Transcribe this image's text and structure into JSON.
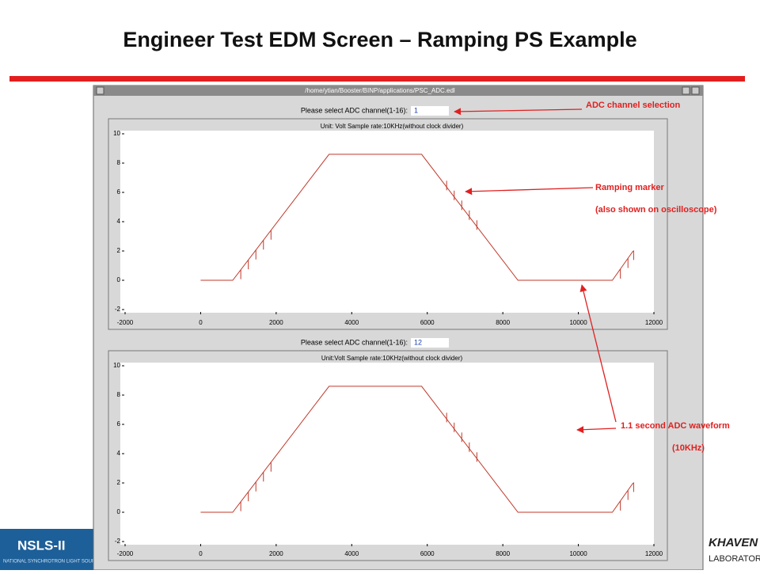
{
  "title": "Engineer Test EDM Screen – Ramping PS Example",
  "window": {
    "title": "/home/ytian/Booster/BINP/applications/PSC_ADC.edl"
  },
  "panels": [
    {
      "prompt": "Please select ADC channel(1-16):",
      "channel": "1",
      "chart": {
        "type": "line",
        "title": "Unit: Volt  Sample rate:10KHz(without clock divider)",
        "xlim": [
          -2000,
          12000
        ],
        "ylim": [
          -2,
          10
        ],
        "xticks": [
          -2000,
          0,
          2000,
          4000,
          6000,
          8000,
          10000,
          12000
        ],
        "yticks": [
          -2,
          0,
          2,
          4,
          6,
          8,
          10
        ],
        "color": "#c0392b",
        "x": [
          0,
          850,
          3400,
          5850,
          8400,
          10900,
          11450
        ],
        "values": [
          0,
          0,
          8.6,
          8.6,
          0,
          0,
          2
        ],
        "markers": [
          1000,
          1200,
          1400,
          1600,
          1800,
          6450,
          6650,
          6850,
          7050,
          7250,
          11050,
          11250,
          11400
        ]
      }
    },
    {
      "prompt": "Please select ADC channel(1-16):",
      "channel": "12",
      "chart": {
        "type": "line",
        "title": "Unit:Volt  Sample rate:10KHz(without clock divider)",
        "xlim": [
          -2000,
          12000
        ],
        "ylim": [
          -2,
          10
        ],
        "xticks": [
          -2000,
          0,
          2000,
          4000,
          6000,
          8000,
          10000,
          12000
        ],
        "yticks": [
          -2,
          0,
          2,
          4,
          6,
          8,
          10
        ],
        "color": "#c0392b",
        "x": [
          0,
          850,
          3400,
          5850,
          8400,
          10900,
          11450
        ],
        "values": [
          0,
          0,
          8.6,
          8.6,
          0,
          0,
          2
        ],
        "markers": [
          1000,
          1200,
          1400,
          1600,
          1800,
          6450,
          6650,
          6850,
          7050,
          7250,
          11050,
          11250,
          11400
        ]
      }
    }
  ],
  "annotations": {
    "channel": "ADC channel selection",
    "marker": "Ramping marker",
    "marker_note": "(also shown on oscilloscope)",
    "waveform": "1.1 second ADC waveform",
    "waveform_note": "(10KHz)"
  },
  "logos": {
    "left": "NSLS-II",
    "left_sub": "NATIONAL SYNCHROTRON LIGHT SOURCE",
    "right": "KHAVEN",
    "right_sub": "LABORATORY"
  }
}
